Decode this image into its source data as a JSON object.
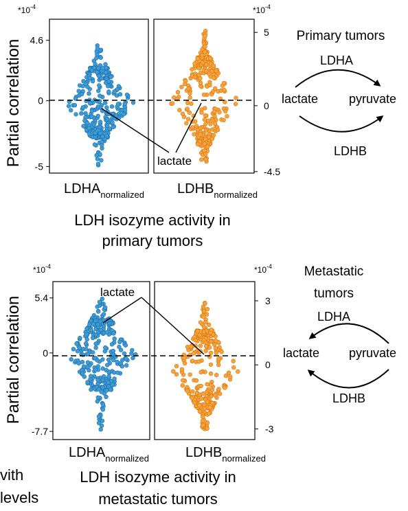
{
  "chart_data": [
    {
      "type": "scatter",
      "subtype": "swarm",
      "panel": "primary",
      "ylabel": "Partial correlation",
      "xlabel_line1": "LDH isozyme activity in",
      "xlabel_line2": "primary tumors",
      "subplots": [
        {
          "category": "LDHA",
          "category_sub": "normalized",
          "color": "#3d9bd6",
          "multiplier": "*10",
          "multiplier_exp": "-4",
          "yticks": [
            {
              "value": 4.6,
              "label": "4.6"
            },
            {
              "value": 0,
              "label": "0"
            },
            {
              "value": -5,
              "label": "-5"
            }
          ],
          "ylim": [
            -5.5,
            6.2
          ],
          "ymax": 4.2,
          "ymin": -4.9,
          "dense_top": 2.5,
          "dense_bottom": -2.8,
          "n_points": 330
        },
        {
          "category": "LDHB",
          "category_sub": "normalized",
          "color": "#f7a23d",
          "multiplier": "*10",
          "multiplier_exp": "-4",
          "yticks": [
            {
              "value": 5,
              "label": "5"
            },
            {
              "value": 0,
              "label": "0"
            },
            {
              "value": -4.5,
              "label": "-4.5"
            }
          ],
          "ylim": [
            -4.6,
            5.9
          ],
          "ymax": 5.1,
          "ymin": -3.8,
          "dense_top": 3.3,
          "dense_bottom": -2.6,
          "n_points": 330
        }
      ],
      "annotation": {
        "label": "lactate",
        "ldha_y": -0.4,
        "ldhb_y": 0.1
      }
    },
    {
      "type": "scatter",
      "subtype": "swarm",
      "panel": "metastatic",
      "ylabel": "Partial correlation",
      "xlabel_line1": "LDH isozyme activity in",
      "xlabel_line2": "metastatic tumors",
      "subplots": [
        {
          "category": "LDHA",
          "category_sub": "normalized",
          "color": "#3d9bd6",
          "multiplier": "*10",
          "multiplier_exp": "-4",
          "yticks": [
            {
              "value": 5.4,
              "label": "5.4"
            },
            {
              "value": 0,
              "label": "0"
            },
            {
              "value": -7.7,
              "label": "-7.7"
            }
          ],
          "ylim": [
            -8.5,
            7.0
          ],
          "ymax": 5.3,
          "ymin": -7.5,
          "dense_top": 3.2,
          "dense_bottom": -3.6,
          "n_points": 330
        },
        {
          "category": "LDHB",
          "category_sub": "normalized",
          "color": "#f7a23d",
          "multiplier": "*10",
          "multiplier_exp": "-4",
          "yticks": [
            {
              "value": 3,
              "label": "3"
            },
            {
              "value": 0,
              "label": "0"
            },
            {
              "value": -3,
              "label": "-3"
            }
          ],
          "ylim": [
            -3.5,
            3.9
          ],
          "ymax": 2.9,
          "ymin": -3.0,
          "dense_top": 1.6,
          "dense_bottom": -2.0,
          "n_points": 330
        }
      ],
      "annotation": {
        "label": "lactate",
        "ldha_y": 1.6,
        "ldhb_y": 0.1
      }
    }
  ],
  "diagrams": [
    {
      "title": "Primary tumors",
      "top_label": "LDHA",
      "left": "lactate",
      "right": "pyruvate",
      "bottom_label": "LDHB",
      "direction": "lactate-to-pyruvate"
    },
    {
      "title_line1": "Metastatic",
      "title_line2": "tumors",
      "top_label": "LDHA",
      "left": "lactate",
      "right": "pyruvate",
      "bottom_label": "LDHB",
      "direction": "pyruvate-to-lactate"
    }
  ],
  "cutoff_text": {
    "line1": "vith",
    "line2": "levels"
  }
}
